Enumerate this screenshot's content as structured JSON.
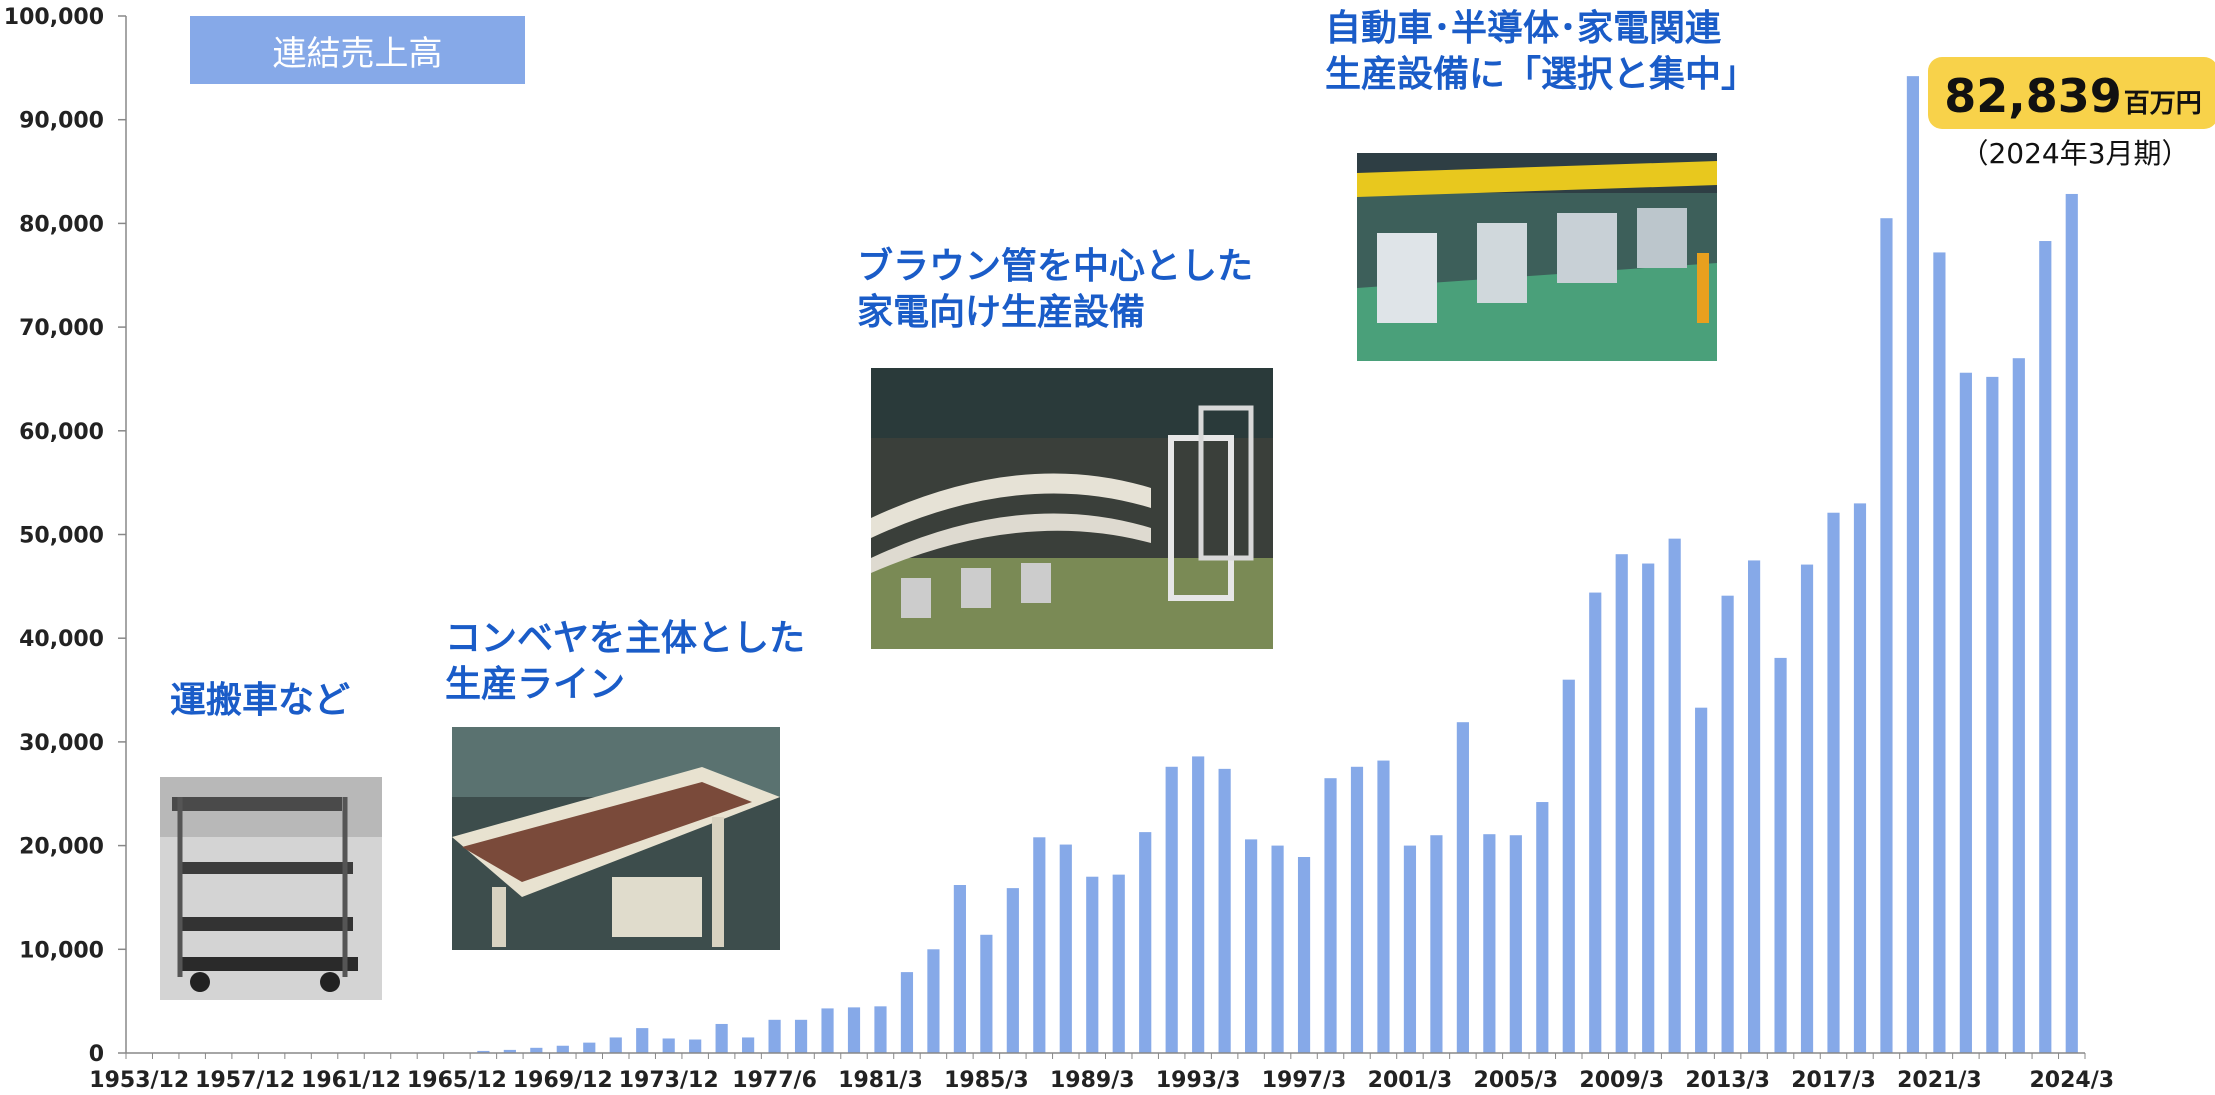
{
  "chart_data": {
    "type": "bar",
    "series": [
      {
        "name": "連結売上高",
        "values": [
          0,
          0,
          0,
          0,
          0,
          0,
          0,
          0,
          0,
          0,
          0,
          0,
          0,
          200,
          300,
          500,
          700,
          1000,
          1500,
          2400,
          1400,
          1300,
          2800,
          1500,
          3200,
          3200,
          4300,
          4400,
          4500,
          7800,
          10000,
          16200,
          11400,
          15900,
          20800,
          20100,
          17000,
          17200,
          21300,
          27600,
          28600,
          27400,
          20600,
          20000,
          18900,
          26500,
          27600,
          28200,
          20000,
          21000,
          31900,
          21100,
          21000,
          24200,
          36000,
          44400,
          48100,
          47200,
          49600,
          33300,
          44100,
          47500,
          38100,
          47100,
          52100,
          53000,
          80500,
          94200,
          77200,
          65600,
          65200,
          67000,
          78300,
          82839
        ]
      }
    ],
    "x_tick_labels": [
      "1953/12",
      "1957/12",
      "1961/12",
      "1965/12",
      "1969/12",
      "1973/12",
      "1977/6",
      "1981/3",
      "1985/3",
      "1989/3",
      "1993/3",
      "1997/3",
      "2001/3",
      "2005/3",
      "2009/3",
      "2013/3",
      "2017/3",
      "2021/3",
      "2024/3"
    ],
    "x_tick_indices": [
      0,
      4,
      8,
      12,
      16,
      20,
      24,
      28,
      32,
      36,
      40,
      44,
      48,
      52,
      56,
      60,
      64,
      68,
      73
    ],
    "ylim": [
      0,
      100000
    ],
    "y_ticks": [
      "0",
      "10,000",
      "20,000",
      "30,000",
      "40,000",
      "50,000",
      "60,000",
      "70,000",
      "80,000",
      "90,000",
      "100,000"
    ],
    "bar_color": "#86a9e8",
    "grid": false
  },
  "legend": {
    "label": "連結売上高"
  },
  "annotations": {
    "a1": "運搬車など",
    "a2": "コンベヤを主体とした\n生産ライン",
    "a3": "ブラウン管を中心とした\n家電向け生産設備",
    "a4": "自動車･半導体･家電関連\n生産設備に「選択と集中」"
  },
  "highlight": {
    "value": "82,839",
    "unit": "百万円",
    "period": "（2024年3月期）"
  },
  "colors": {
    "annotation": "#1a5cc8",
    "highlight_bg": "#f8d24a",
    "legend_bg": "#86a9e8"
  }
}
